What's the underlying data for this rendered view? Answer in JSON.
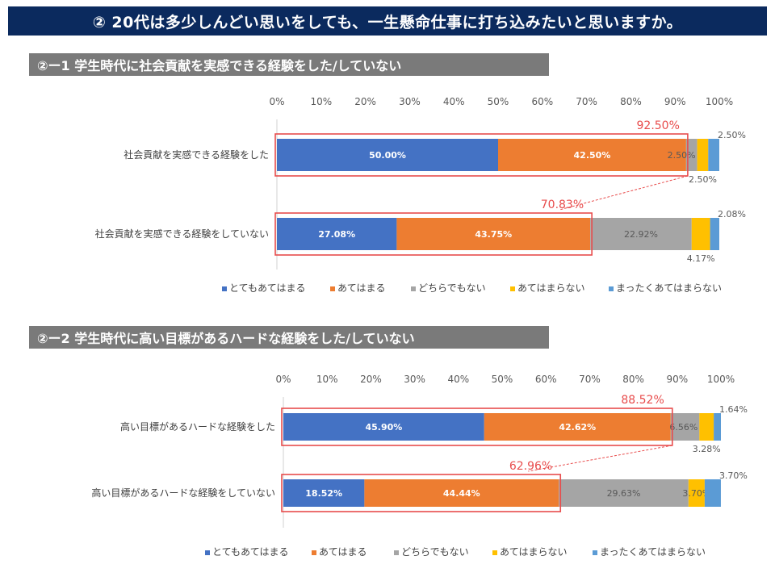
{
  "page_title": "② 20代は多少しんどい思いをしても、一生懸命仕事に打ち込みたいと思いますか。",
  "section1": {
    "header": "②ー1 学生時代に社会貢献を実感できる経験をした/していない"
  },
  "section2": {
    "header": "②ー2 学生時代に高い目標があるハード な経験をした/していない"
  },
  "chart_data": [
    {
      "type": "bar",
      "orientation": "horizontal-stacked-100",
      "title": "②ー1 学生時代に社会貢献を実感できる経験をした/していない",
      "categories": [
        "社会貢献を実感できる経験をした",
        "社会貢献を実感できる経験をしていない"
      ],
      "series": [
        {
          "name": "とてもあてはまる",
          "color": "#4472c4",
          "values": [
            50.0,
            27.08
          ],
          "labels": [
            "50.00%",
            "27.08%"
          ]
        },
        {
          "name": "あてはまる",
          "color": "#ed7d31",
          "values": [
            42.5,
            43.75
          ],
          "labels": [
            "42.50%",
            "43.75%"
          ]
        },
        {
          "name": "どちらでもない",
          "color": "#a5a5a5",
          "values": [
            2.5,
            22.92
          ],
          "labels": [
            "2.50%",
            "22.92%"
          ]
        },
        {
          "name": "あてはまらない",
          "color": "#ffc000",
          "values": [
            2.5,
            4.17
          ],
          "labels": [
            "2.50%",
            "4.17%"
          ]
        },
        {
          "name": "まったくあてはまらない",
          "color": "#5b9bd5",
          "values": [
            2.5,
            2.08
          ],
          "labels": [
            "2.50%",
            "2.08%"
          ]
        }
      ],
      "xlim": [
        0,
        100
      ],
      "ticks": [
        "0%",
        "10%",
        "20%",
        "30%",
        "40%",
        "50%",
        "60%",
        "70%",
        "80%",
        "90%",
        "100%"
      ],
      "highlight_totals": [
        "92.50%",
        "70.83%"
      ],
      "highlight_color": "#e84c4c",
      "legend_position": "bottom"
    },
    {
      "type": "bar",
      "orientation": "horizontal-stacked-100",
      "title": "②ー2 学生時代に高い目標があるハードな経験をした/していない",
      "categories": [
        "高い目標があるハードな経験をした",
        "高い目標があるハードな経験をしていない"
      ],
      "series": [
        {
          "name": "とてもあてはまる",
          "color": "#4472c4",
          "values": [
            45.9,
            18.52
          ],
          "labels": [
            "45.90%",
            "18.52%"
          ]
        },
        {
          "name": "あてはまる",
          "color": "#ed7d31",
          "values": [
            42.62,
            44.44
          ],
          "labels": [
            "42.62%",
            "44.44%"
          ]
        },
        {
          "name": "どちらでもない",
          "color": "#a5a5a5",
          "values": [
            6.56,
            29.63
          ],
          "labels": [
            "6.56%",
            "29.63%"
          ]
        },
        {
          "name": "あてはまらない",
          "color": "#ffc000",
          "values": [
            3.28,
            3.7
          ],
          "labels": [
            "3.28%",
            "3.70%"
          ]
        },
        {
          "name": "まったくあてはまらない",
          "color": "#5b9bd5",
          "values": [
            1.64,
            3.7
          ],
          "labels": [
            "1.64%",
            "3.70%"
          ]
        }
      ],
      "xlim": [
        0,
        100
      ],
      "ticks": [
        "0%",
        "10%",
        "20%",
        "30%",
        "40%",
        "50%",
        "60%",
        "70%",
        "80%",
        "90%",
        "100%"
      ],
      "highlight_totals": [
        "88.52%",
        "62.96%"
      ],
      "highlight_color": "#e84c4c",
      "legend_position": "bottom"
    }
  ]
}
